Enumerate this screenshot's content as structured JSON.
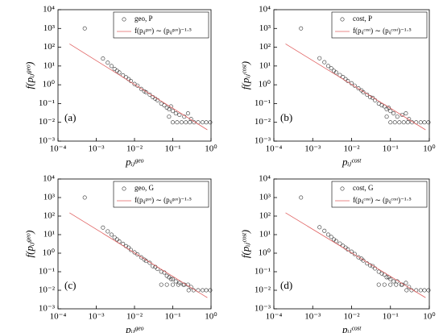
{
  "chart_data": [
    {
      "type": "scatter",
      "panel_label": "(a)",
      "x_label": "pᵢⱼᵍᵉᵒ",
      "y_label": "f(pᵢⱼᵍᵉᵒ)",
      "log_x": true,
      "log_y": true,
      "legend": "upper right",
      "xlim": [
        0.0001,
        1
      ],
      "xticks": [
        {
          "value": 0.0001,
          "label": "10⁻⁴"
        },
        {
          "value": 0.001,
          "label": "10⁻³"
        },
        {
          "value": 0.01,
          "label": "10⁻²"
        },
        {
          "value": 0.1,
          "label": "10⁻¹"
        },
        {
          "value": 1,
          "label": "10⁰"
        }
      ],
      "ylim": [
        0.001,
        10000
      ],
      "yticks": [
        {
          "value": 0.001,
          "label": "10⁻³"
        },
        {
          "value": 0.01,
          "label": "10⁻²"
        },
        {
          "value": 0.1,
          "label": "10⁻¹"
        },
        {
          "value": 1,
          "label": "10⁰"
        },
        {
          "value": 10,
          "label": "10¹"
        },
        {
          "value": 100,
          "label": "10²"
        },
        {
          "value": 1000,
          "label": "10³"
        },
        {
          "value": 10000,
          "label": "10⁴"
        }
      ],
      "series": [
        {
          "name": "geo, P",
          "color": "#333333",
          "kind": "points",
          "x": [
            0.0005,
            0.0015,
            0.002,
            0.0025,
            0.003,
            0.0035,
            0.004,
            0.005,
            0.006,
            0.007,
            0.008,
            0.01,
            0.012,
            0.015,
            0.018,
            0.02,
            0.025,
            0.03,
            0.035,
            0.04,
            0.05,
            0.06,
            0.07,
            0.08,
            0.09,
            0.1,
            0.12,
            0.15,
            0.2,
            0.25,
            0.3,
            0.08,
            0.1,
            0.13,
            0.17,
            0.22,
            0.28,
            0.36,
            0.46,
            0.6,
            0.75,
            0.95
          ],
          "values": [
            1000,
            25,
            15,
            10,
            7,
            5.5,
            4.5,
            3.2,
            2.5,
            2,
            1.6,
            1.1,
            0.9,
            0.6,
            0.45,
            0.4,
            0.3,
            0.22,
            0.18,
            0.15,
            0.1,
            0.08,
            0.06,
            0.05,
            0.07,
            0.04,
            0.03,
            0.025,
            0.02,
            0.03,
            0.015,
            0.02,
            0.01,
            0.01,
            0.01,
            0.01,
            0.01,
            0.01,
            0.01,
            0.01,
            0.01,
            0.01
          ]
        },
        {
          "name": "f(pᵢⱼᵍᵉᵒ) ∼ (pᵢⱼᵍᵉᵒ)⁻¹·⁵",
          "color": "#e06060",
          "kind": "line",
          "x": [
            0.0002,
            0.8
          ],
          "values": [
            150,
            0.004
          ]
        }
      ]
    },
    {
      "type": "scatter",
      "panel_label": "(b)",
      "x_label": "pᵢⱼᶜᵒˢᵗ",
      "y_label": "f(pᵢⱼᶜᵒˢᵗ)",
      "log_x": true,
      "log_y": true,
      "legend": "upper right",
      "xlim": [
        0.0001,
        1
      ],
      "xticks": [
        {
          "value": 0.0001,
          "label": "10⁻⁴"
        },
        {
          "value": 0.001,
          "label": "10⁻³"
        },
        {
          "value": 0.01,
          "label": "10⁻²"
        },
        {
          "value": 0.1,
          "label": "10⁻¹"
        },
        {
          "value": 1,
          "label": "10⁰"
        }
      ],
      "ylim": [
        0.001,
        10000
      ],
      "yticks": [
        {
          "value": 0.001,
          "label": "10⁻³"
        },
        {
          "value": 0.01,
          "label": "10⁻²"
        },
        {
          "value": 0.1,
          "label": "10⁻¹"
        },
        {
          "value": 1,
          "label": "10⁰"
        },
        {
          "value": 10,
          "label": "10¹"
        },
        {
          "value": 100,
          "label": "10²"
        },
        {
          "value": 1000,
          "label": "10³"
        },
        {
          "value": 10000,
          "label": "10⁴"
        }
      ],
      "series": [
        {
          "name": "cost, P",
          "color": "#333333",
          "kind": "points",
          "x": [
            0.0005,
            0.0015,
            0.002,
            0.0025,
            0.003,
            0.0035,
            0.004,
            0.005,
            0.006,
            0.007,
            0.008,
            0.01,
            0.012,
            0.015,
            0.018,
            0.02,
            0.025,
            0.03,
            0.035,
            0.04,
            0.05,
            0.06,
            0.07,
            0.08,
            0.09,
            0.1,
            0.12,
            0.15,
            0.2,
            0.25,
            0.3,
            0.08,
            0.1,
            0.13,
            0.17,
            0.22,
            0.28,
            0.36,
            0.46,
            0.6,
            0.75,
            0.95
          ],
          "values": [
            1000,
            26,
            16,
            10,
            7.5,
            5.5,
            4.5,
            3.3,
            2.6,
            2,
            1.6,
            1.2,
            0.9,
            0.65,
            0.5,
            0.4,
            0.3,
            0.22,
            0.2,
            0.15,
            0.1,
            0.08,
            0.07,
            0.05,
            0.06,
            0.04,
            0.03,
            0.02,
            0.025,
            0.03,
            0.015,
            0.02,
            0.01,
            0.01,
            0.01,
            0.01,
            0.01,
            0.01,
            0.01,
            0.01,
            0.01,
            0.01
          ]
        },
        {
          "name": "f(pᵢⱼᶜᵒˢᵗ) ∼ (pᵢⱼᶜᵒˢᵗ)⁻¹·⁵",
          "color": "#e06060",
          "kind": "line",
          "x": [
            0.0002,
            0.8
          ],
          "values": [
            150,
            0.004
          ]
        }
      ]
    },
    {
      "type": "scatter",
      "panel_label": "(c)",
      "x_label": "pᵢⱼᵍᵉᵒ",
      "y_label": "f(pᵢⱼᵍᵉᵒ)",
      "log_x": true,
      "log_y": true,
      "legend": "upper right",
      "xlim": [
        0.0001,
        1
      ],
      "xticks": [
        {
          "value": 0.0001,
          "label": "10⁻⁴"
        },
        {
          "value": 0.001,
          "label": "10⁻³"
        },
        {
          "value": 0.01,
          "label": "10⁻²"
        },
        {
          "value": 0.1,
          "label": "10⁻¹"
        },
        {
          "value": 1,
          "label": "10⁰"
        }
      ],
      "ylim": [
        0.001,
        10000
      ],
      "yticks": [
        {
          "value": 0.001,
          "label": "10⁻³"
        },
        {
          "value": 0.01,
          "label": "10⁻²"
        },
        {
          "value": 0.1,
          "label": "10⁻¹"
        },
        {
          "value": 1,
          "label": "10⁰"
        },
        {
          "value": 10,
          "label": "10¹"
        },
        {
          "value": 100,
          "label": "10²"
        },
        {
          "value": 1000,
          "label": "10³"
        },
        {
          "value": 10000,
          "label": "10⁴"
        }
      ],
      "series": [
        {
          "name": "geo, G",
          "color": "#333333",
          "kind": "points",
          "x": [
            0.0005,
            0.0015,
            0.002,
            0.0025,
            0.003,
            0.0035,
            0.004,
            0.005,
            0.006,
            0.007,
            0.008,
            0.01,
            0.012,
            0.015,
            0.018,
            0.02,
            0.025,
            0.03,
            0.035,
            0.04,
            0.05,
            0.06,
            0.07,
            0.08,
            0.09,
            0.1,
            0.12,
            0.15,
            0.2,
            0.25,
            0.3,
            0.05,
            0.07,
            0.1,
            0.14,
            0.19,
            0.26,
            0.35,
            0.46,
            0.6,
            0.75,
            0.95
          ],
          "values": [
            1000,
            24,
            15,
            10,
            7,
            5.5,
            4.3,
            3.2,
            2.4,
            2,
            1.5,
            1.1,
            0.85,
            0.6,
            0.45,
            0.38,
            0.3,
            0.2,
            0.18,
            0.14,
            0.1,
            0.09,
            0.06,
            0.05,
            0.04,
            0.04,
            0.03,
            0.025,
            0.02,
            0.02,
            0.015,
            0.02,
            0.02,
            0.02,
            0.02,
            0.02,
            0.01,
            0.01,
            0.01,
            0.01,
            0.01,
            0.01
          ]
        },
        {
          "name": "f(pᵢⱼᵍᵉᵒ) ∼ (pᵢⱼᵍᵉᵒ)⁻¹·⁵",
          "color": "#e06060",
          "kind": "line",
          "x": [
            0.0002,
            0.8
          ],
          "values": [
            150,
            0.004
          ]
        }
      ]
    },
    {
      "type": "scatter",
      "panel_label": "(d)",
      "x_label": "pᵢⱼᶜᵒˢᵗ",
      "y_label": "f(pᵢⱼᶜᵒˢᵗ)",
      "log_x": true,
      "log_y": true,
      "legend": "upper right",
      "xlim": [
        0.0001,
        1
      ],
      "xticks": [
        {
          "value": 0.0001,
          "label": "10⁻⁴"
        },
        {
          "value": 0.001,
          "label": "10⁻³"
        },
        {
          "value": 0.01,
          "label": "10⁻²"
        },
        {
          "value": 0.1,
          "label": "10⁻¹"
        },
        {
          "value": 1,
          "label": "10⁰"
        }
      ],
      "ylim": [
        0.001,
        10000
      ],
      "yticks": [
        {
          "value": 0.001,
          "label": "10⁻³"
        },
        {
          "value": 0.01,
          "label": "10⁻²"
        },
        {
          "value": 0.1,
          "label": "10⁻¹"
        },
        {
          "value": 1,
          "label": "10⁰"
        },
        {
          "value": 10,
          "label": "10¹"
        },
        {
          "value": 100,
          "label": "10²"
        },
        {
          "value": 1000,
          "label": "10³"
        },
        {
          "value": 10000,
          "label": "10⁴"
        }
      ],
      "series": [
        {
          "name": "cost, G",
          "color": "#333333",
          "kind": "points",
          "x": [
            0.0005,
            0.0015,
            0.002,
            0.0025,
            0.003,
            0.0035,
            0.004,
            0.005,
            0.006,
            0.007,
            0.008,
            0.01,
            0.012,
            0.015,
            0.018,
            0.02,
            0.025,
            0.03,
            0.035,
            0.04,
            0.05,
            0.06,
            0.07,
            0.08,
            0.09,
            0.1,
            0.12,
            0.15,
            0.2,
            0.25,
            0.3,
            0.05,
            0.07,
            0.1,
            0.14,
            0.19,
            0.26,
            0.35,
            0.46,
            0.6,
            0.75,
            0.95
          ],
          "values": [
            1000,
            25,
            16,
            10,
            7.5,
            5.5,
            4.5,
            3.3,
            2.5,
            2,
            1.6,
            1.2,
            0.9,
            0.6,
            0.5,
            0.4,
            0.28,
            0.22,
            0.2,
            0.15,
            0.1,
            0.08,
            0.07,
            0.05,
            0.05,
            0.04,
            0.03,
            0.03,
            0.02,
            0.025,
            0.015,
            0.02,
            0.02,
            0.02,
            0.02,
            0.02,
            0.01,
            0.01,
            0.01,
            0.01,
            0.01,
            0.01
          ]
        },
        {
          "name": "f(pᵢⱼᶜᵒˢᵗ) ∼ (pᵢⱼᶜᵒˢᵗ)⁻¹·⁵",
          "color": "#e06060",
          "kind": "line",
          "x": [
            0.0002,
            0.8
          ],
          "values": [
            150,
            0.004
          ]
        }
      ]
    }
  ]
}
